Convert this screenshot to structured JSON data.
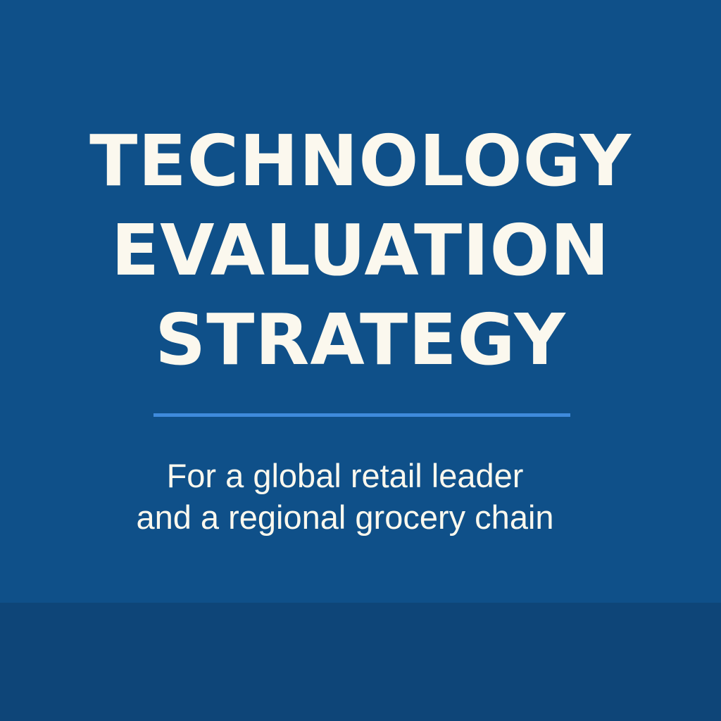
{
  "slide": {
    "title_lines": [
      "TECHNOLOGY",
      "EVALUATION",
      "STRATEGY"
    ],
    "subtitle_lines": [
      "For a global retail leader",
      "and a regional grocery chain"
    ]
  },
  "colors": {
    "background": "#0f5089",
    "footer_band": "#0e4578",
    "divider": "#3f8bdc",
    "text": "#fbf8ee"
  }
}
